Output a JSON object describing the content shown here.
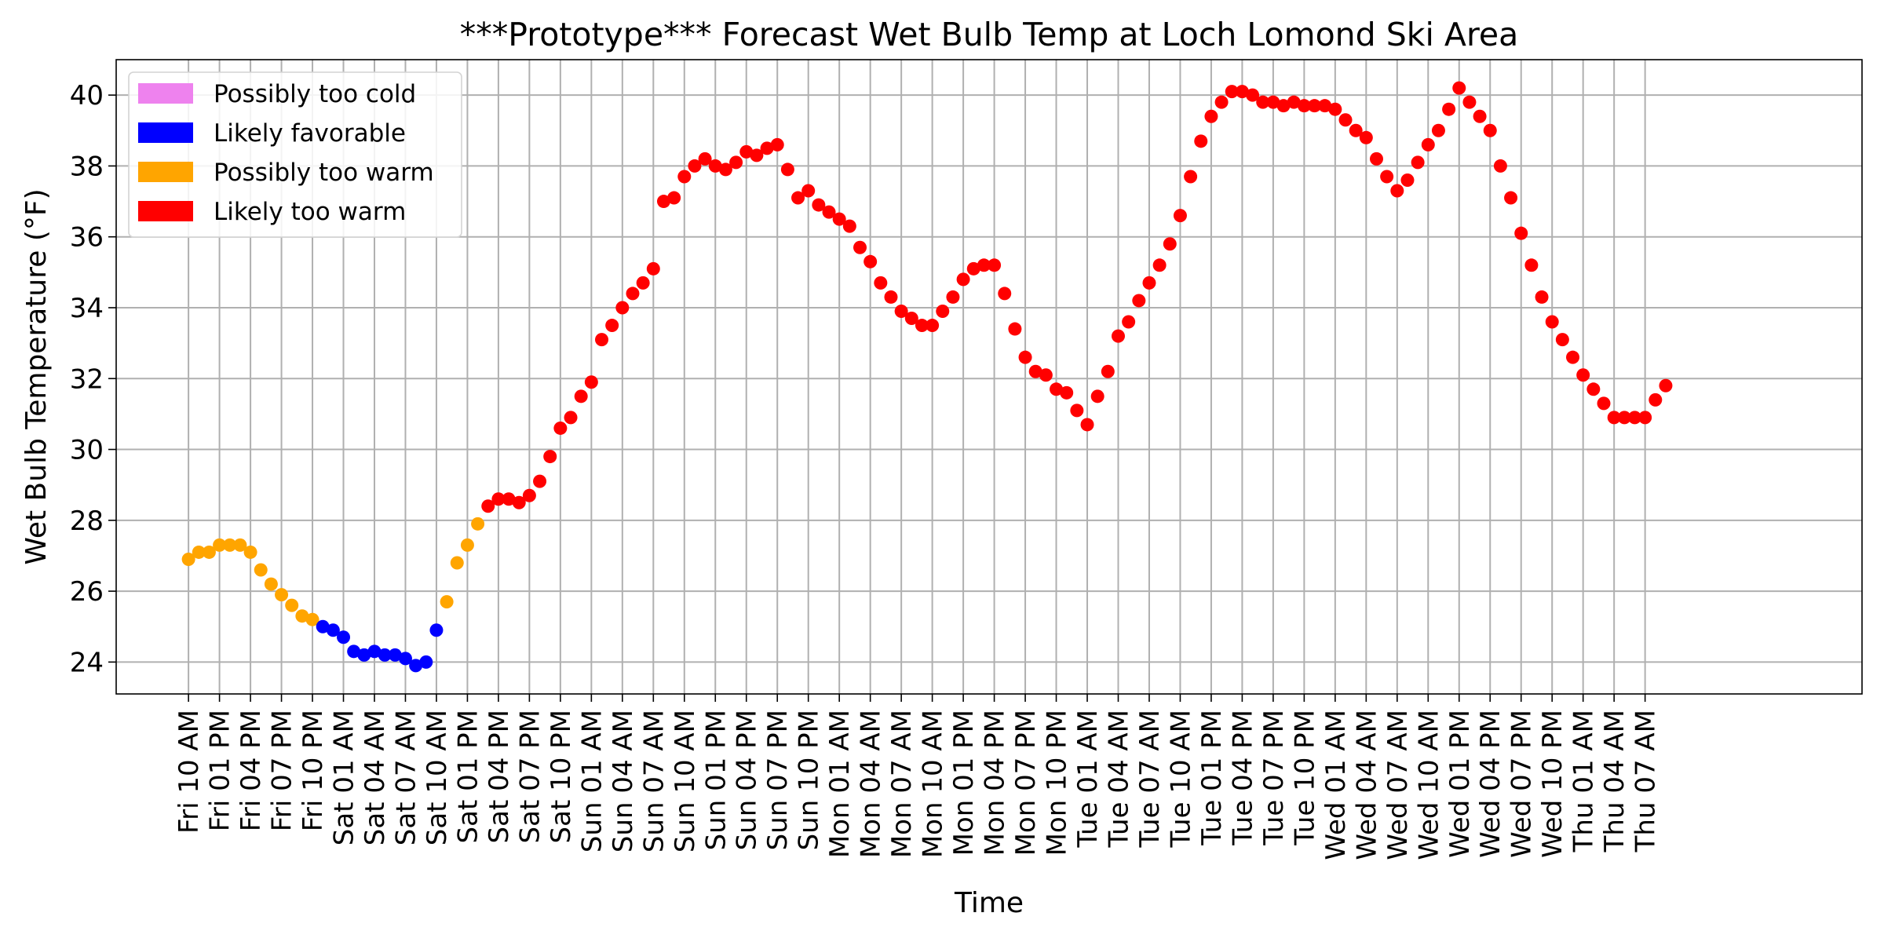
{
  "chart_data": {
    "type": "scatter",
    "title": "***Prototype*** Forecast Wet Bulb Temp at Loch Lomond Ski Area",
    "xlabel": "Time",
    "ylabel": "Wet Bulb Temperature (°F)",
    "ylim": [
      23.1,
      41.0
    ],
    "xlim": [
      -7,
      162
    ],
    "yticks": [
      24,
      26,
      28,
      30,
      32,
      34,
      36,
      38,
      40
    ],
    "grid": true,
    "legend_position": "top-left",
    "x_tick_step_hours": 3,
    "x_ticks": [
      "Fri 10 AM",
      "Fri 01 PM",
      "Fri 04 PM",
      "Fri 07 PM",
      "Fri 10 PM",
      "Sat 01 AM",
      "Sat 04 AM",
      "Sat 07 AM",
      "Sat 10 AM",
      "Sat 01 PM",
      "Sat 04 PM",
      "Sat 07 PM",
      "Sat 10 PM",
      "Sun 01 AM",
      "Sun 04 AM",
      "Sun 07 AM",
      "Sun 10 AM",
      "Sun 01 PM",
      "Sun 04 PM",
      "Sun 07 PM",
      "Sun 10 PM",
      "Mon 01 AM",
      "Mon 04 AM",
      "Mon 07 AM",
      "Mon 10 AM",
      "Mon 01 PM",
      "Mon 04 PM",
      "Mon 07 PM",
      "Mon 10 PM",
      "Tue 01 AM",
      "Tue 04 AM",
      "Tue 07 AM",
      "Tue 10 AM",
      "Tue 01 PM",
      "Tue 04 PM",
      "Tue 07 PM",
      "Tue 10 PM",
      "Wed 01 AM",
      "Wed 04 AM",
      "Wed 07 AM",
      "Wed 10 AM",
      "Wed 01 PM",
      "Wed 04 PM",
      "Wed 07 PM",
      "Wed 10 PM",
      "Thu 01 AM",
      "Thu 04 AM",
      "Thu 07 AM"
    ],
    "legend": [
      {
        "label": "Possibly too cold",
        "color": "#ee82ee"
      },
      {
        "label": "Likely favorable",
        "color": "#0000ff"
      },
      {
        "label": "Possibly too warm",
        "color": "#ffa500"
      },
      {
        "label": "Likely too warm",
        "color": "#ff0000"
      }
    ],
    "series": [
      {
        "name": "Possibly too warm",
        "color": "#ffa500",
        "x": [
          "Fri 10 AM",
          "Fri 11 AM",
          "Fri 12 PM",
          "Fri 01 PM",
          "Fri 02 PM",
          "Fri 03 PM",
          "Fri 04 PM",
          "Fri 05 PM",
          "Fri 06 PM",
          "Fri 07 PM",
          "Fri 08 PM",
          "Fri 09 PM",
          "Fri 10 PM"
        ],
        "y": [
          26.9,
          27.1,
          27.1,
          27.3,
          27.3,
          27.3,
          27.1,
          26.6,
          26.2,
          25.9,
          25.6,
          25.3,
          25.2
        ]
      },
      {
        "name": "Likely favorable",
        "color": "#0000ff",
        "x": [
          "Fri 11 PM",
          "Sat 12 AM",
          "Sat 01 AM",
          "Sat 02 AM",
          "Sat 03 AM",
          "Sat 04 AM",
          "Sat 05 AM",
          "Sat 06 AM",
          "Sat 07 AM",
          "Sat 08 AM",
          "Sat 09 AM",
          "Sat 10 AM"
        ],
        "y": [
          25.0,
          24.9,
          24.7,
          24.3,
          24.2,
          24.3,
          24.2,
          24.2,
          24.1,
          23.9,
          24.0,
          24.9
        ]
      },
      {
        "name": "Possibly too warm",
        "color": "#ffa500",
        "x": [
          "Sat 11 AM",
          "Sat 12 PM",
          "Sat 01 PM",
          "Sat 02 PM"
        ],
        "y": [
          25.7,
          26.8,
          27.3,
          27.9
        ]
      },
      {
        "name": "Likely too warm",
        "color": "#ff0000",
        "x": [
          "Sat 03 PM",
          "Sat 04 PM",
          "Sat 05 PM",
          "Sat 06 PM",
          "Sat 07 PM",
          "Sat 08 PM",
          "Sat 09 PM",
          "Sat 10 PM",
          "Sat 11 PM",
          "Sun 12 AM",
          "Sun 01 AM",
          "Sun 02 AM",
          "Sun 03 AM",
          "Sun 04 AM",
          "Sun 05 AM",
          "Sun 06 AM",
          "Sun 07 AM",
          "Sun 08 AM",
          "Sun 09 AM",
          "Sun 10 AM",
          "Sun 11 AM",
          "Sun 12 PM",
          "Sun 01 PM",
          "Sun 02 PM",
          "Sun 03 PM",
          "Sun 04 PM",
          "Sun 05 PM",
          "Sun 06 PM",
          "Sun 07 PM",
          "Sun 08 PM",
          "Sun 09 PM",
          "Sun 10 PM",
          "Sun 11 PM",
          "Mon 12 AM",
          "Mon 01 AM",
          "Mon 02 AM",
          "Mon 03 AM",
          "Mon 04 AM",
          "Mon 05 AM",
          "Mon 06 AM",
          "Mon 07 AM",
          "Mon 08 AM",
          "Mon 09 AM",
          "Mon 10 AM",
          "Mon 11 AM",
          "Mon 12 PM",
          "Mon 01 PM",
          "Mon 02 PM",
          "Mon 03 PM",
          "Mon 04 PM",
          "Mon 05 PM",
          "Mon 06 PM",
          "Mon 07 PM",
          "Mon 08 PM",
          "Mon 09 PM",
          "Mon 10 PM",
          "Mon 11 PM",
          "Tue 12 AM",
          "Tue 01 AM",
          "Tue 02 AM",
          "Tue 03 AM",
          "Tue 04 AM",
          "Tue 05 AM",
          "Tue 06 AM",
          "Tue 07 AM",
          "Tue 08 AM",
          "Tue 09 AM",
          "Tue 10 AM",
          "Tue 11 AM",
          "Tue 12 PM",
          "Tue 01 PM",
          "Tue 02 PM",
          "Tue 03 PM",
          "Tue 04 PM",
          "Tue 05 PM",
          "Tue 06 PM",
          "Tue 07 PM",
          "Tue 08 PM",
          "Tue 09 PM",
          "Tue 10 PM",
          "Tue 11 PM",
          "Wed 12 AM",
          "Wed 01 AM",
          "Wed 02 AM",
          "Wed 03 AM",
          "Wed 04 AM",
          "Wed 05 AM",
          "Wed 06 AM",
          "Wed 07 AM",
          "Wed 08 AM",
          "Wed 09 AM",
          "Wed 10 AM",
          "Wed 11 AM",
          "Wed 12 PM",
          "Wed 01 PM",
          "Wed 02 PM",
          "Wed 03 PM",
          "Wed 04 PM",
          "Wed 05 PM",
          "Wed 06 PM",
          "Wed 07 PM",
          "Wed 08 PM",
          "Wed 09 PM",
          "Wed 10 PM",
          "Wed 11 PM",
          "Thu 12 AM",
          "Thu 01 AM",
          "Thu 02 AM",
          "Thu 03 AM",
          "Thu 04 AM",
          "Thu 05 AM",
          "Thu 06 AM",
          "Thu 07 AM",
          "Thu 08 AM",
          "Thu 09 AM"
        ],
        "y": [
          28.4,
          28.6,
          28.6,
          28.5,
          28.7,
          29.1,
          29.8,
          30.6,
          30.9,
          31.5,
          31.9,
          33.1,
          33.5,
          34.0,
          34.4,
          34.7,
          35.1,
          37.0,
          37.1,
          37.7,
          38.0,
          38.2,
          38.0,
          37.9,
          38.1,
          38.4,
          38.3,
          38.5,
          38.6,
          37.9,
          37.1,
          37.3,
          36.9,
          36.7,
          36.5,
          36.3,
          35.7,
          35.3,
          34.7,
          34.3,
          33.9,
          33.7,
          33.5,
          33.5,
          33.9,
          34.3,
          34.8,
          35.1,
          35.2,
          35.2,
          34.4,
          33.4,
          32.6,
          32.2,
          32.1,
          31.7,
          31.6,
          31.1,
          30.7,
          31.5,
          32.2,
          33.2,
          33.6,
          34.2,
          34.7,
          35.2,
          35.8,
          36.6,
          37.7,
          38.7,
          39.4,
          39.8,
          40.1,
          40.1,
          40.0,
          39.8,
          39.8,
          39.7,
          39.8,
          39.7,
          39.7,
          39.7,
          39.6,
          39.3,
          39.0,
          38.8,
          38.2,
          37.7,
          37.3,
          37.6,
          38.1,
          38.6,
          39.0,
          39.6,
          40.2,
          39.8,
          39.4,
          39.0,
          38.0,
          37.1,
          36.1,
          35.2,
          34.3,
          33.6,
          33.1,
          32.6,
          32.1,
          31.7,
          31.3,
          30.9,
          30.9,
          30.9,
          30.9,
          31.4,
          31.8
        ]
      }
    ]
  }
}
